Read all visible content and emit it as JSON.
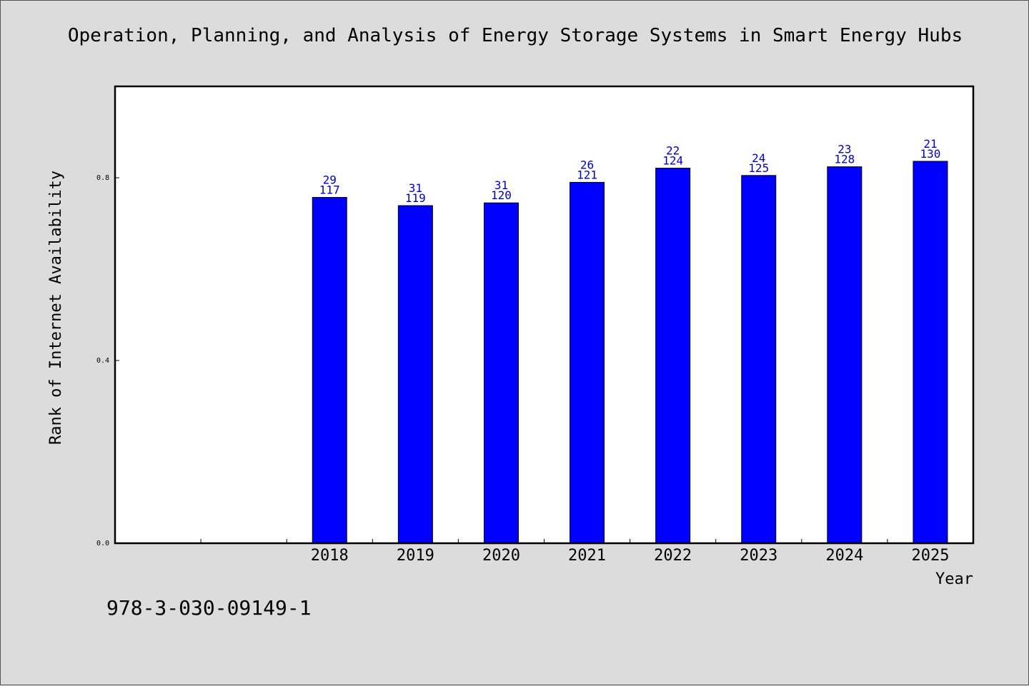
{
  "title": "Operation, Planning, and Analysis of Energy Storage Systems in Smart Energy Hubs",
  "footer_id": "978-3-030-09149-1",
  "chart_data": {
    "type": "bar",
    "title": "Operation, Planning, and Analysis of Energy Storage Systems in Smart Energy Hubs",
    "xlabel": "Year",
    "ylabel": "Rank of Internet Availability",
    "categories": [
      "",
      "",
      "2018",
      "2019",
      "2020",
      "2021",
      "2022",
      "2023",
      "2024",
      "2025"
    ],
    "values": [
      null,
      null,
      0.757,
      0.739,
      0.745,
      0.79,
      0.821,
      0.805,
      0.824,
      0.836
    ],
    "bar_labels_top": [
      "",
      "",
      "29",
      "31",
      "31",
      "26",
      "22",
      "24",
      "23",
      "21"
    ],
    "bar_labels_bottom": [
      "",
      "",
      "117",
      "119",
      "120",
      "121",
      "124",
      "125",
      "128",
      "130"
    ],
    "yticks": [
      "0.0",
      "0.4",
      "0.8"
    ],
    "ylim": [
      0,
      1.0
    ],
    "bar_color": "#0000ff",
    "label_color": "#0000cc",
    "grid": false,
    "legend": false
  }
}
